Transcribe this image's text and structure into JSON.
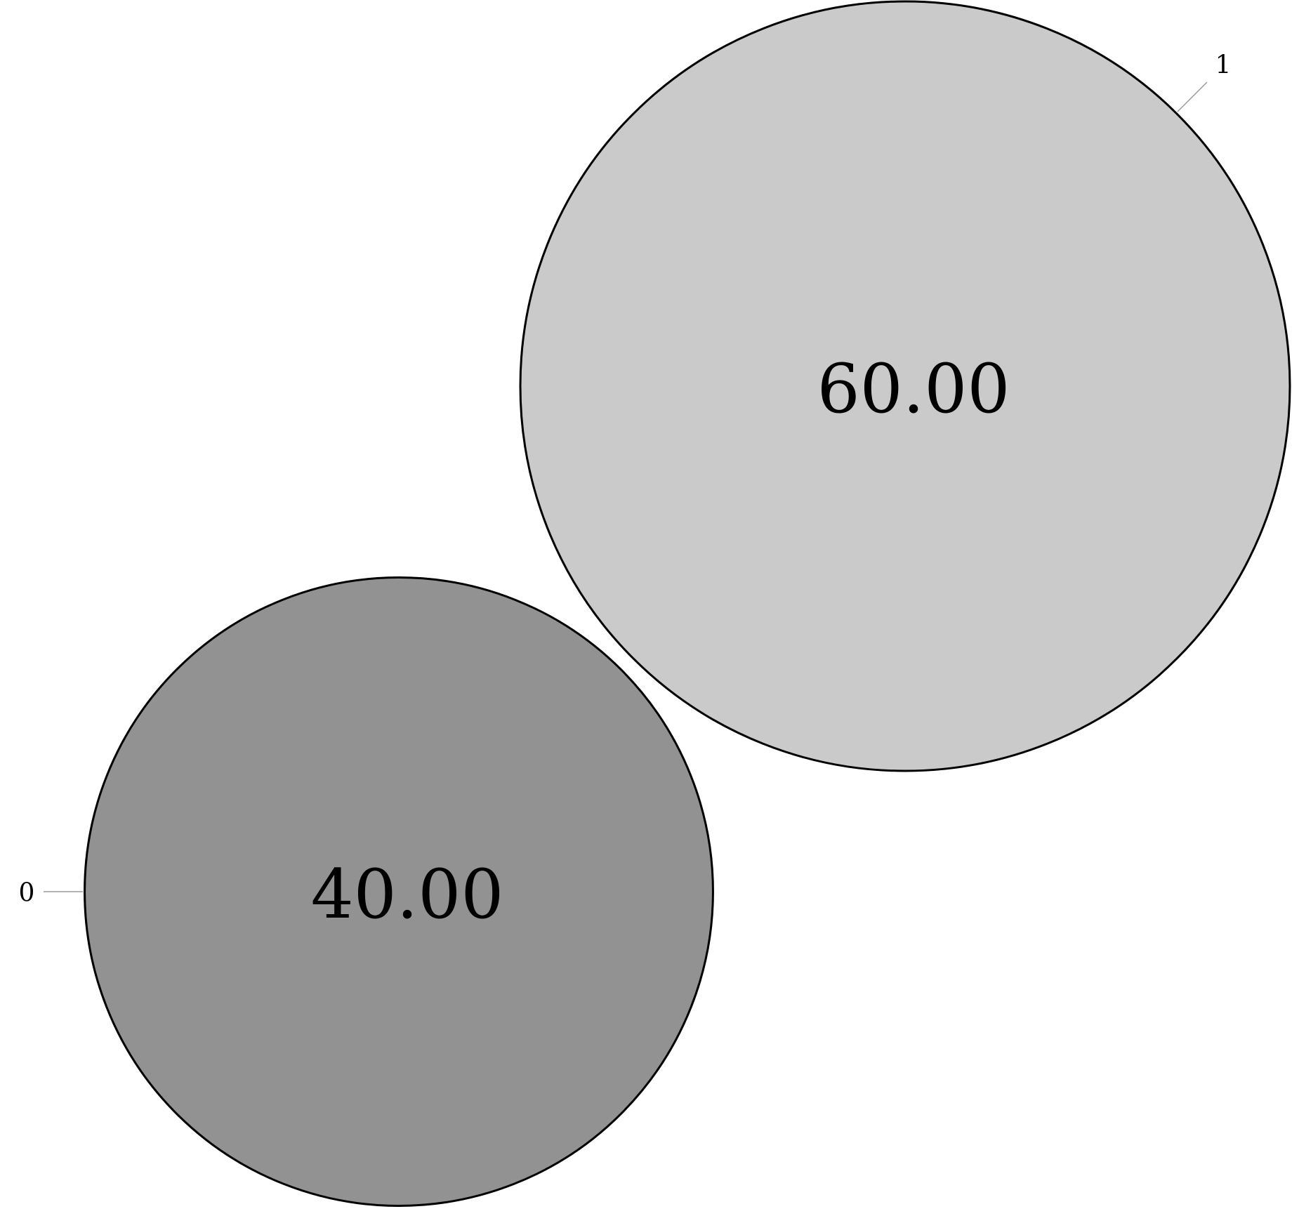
{
  "chart_data": {
    "type": "bubble",
    "title": "",
    "xlabel": "",
    "ylabel": "",
    "grid": false,
    "legend": "none",
    "categories": [
      "0",
      "1"
    ],
    "values": [
      40.0,
      60.0
    ],
    "value_labels": [
      "40.00",
      "60.00"
    ],
    "colors": [
      "#929292",
      "#cacaca"
    ],
    "outline_color": "#000000",
    "leader_color": "#9a9a9a"
  }
}
